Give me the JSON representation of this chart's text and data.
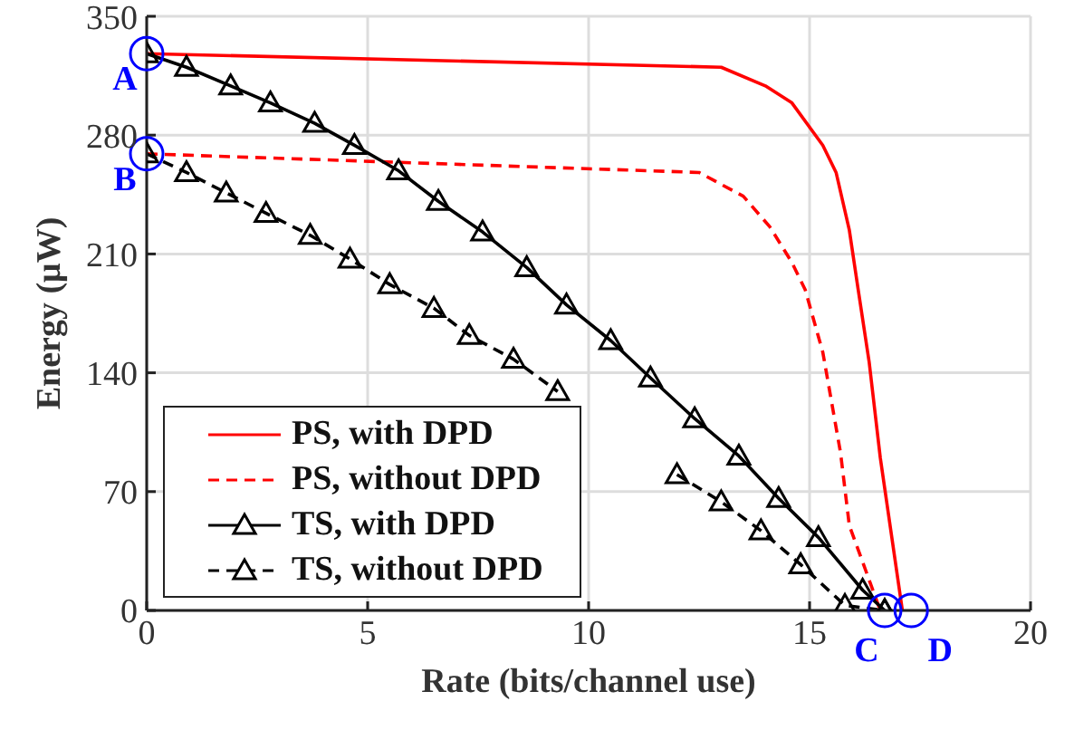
{
  "chart_data": {
    "type": "line",
    "xlabel": "Rate (bits/channel use)",
    "ylabel": "Energy (μW)",
    "xlim": [
      0,
      20
    ],
    "xticks": [
      0,
      5,
      10,
      15,
      20
    ],
    "ylim": [
      0,
      350
    ],
    "yticks": [
      0,
      70,
      140,
      210,
      280,
      350
    ],
    "grid": true,
    "legend": "bottom left",
    "series": [
      {
        "name": "PS, with DPD",
        "color": "#ff0000",
        "line_style": "solid",
        "marker": "none",
        "x": [
          0,
          13.0,
          14.0,
          14.6,
          15.3,
          15.6,
          15.9,
          16.1,
          16.35,
          16.6,
          17.1
        ],
        "values": [
          328,
          320,
          309,
          299,
          274,
          258,
          224,
          189,
          146,
          90,
          0
        ]
      },
      {
        "name": "PS, without DPD",
        "color": "#ff0000",
        "line_style": "dashed",
        "marker": "none",
        "x": [
          0,
          12.5,
          13.5,
          14.1,
          14.6,
          14.9,
          15.3,
          15.7,
          15.9,
          16.6
        ],
        "values": [
          269,
          258,
          244,
          226,
          205,
          189,
          152,
          93,
          50,
          0
        ]
      },
      {
        "name": "TS, with DPD",
        "color": "#000000",
        "line_style": "solid",
        "marker": "triangle",
        "x": [
          0,
          0.9,
          1.9,
          2.8,
          3.8,
          4.7,
          5.7,
          6.6,
          7.6,
          8.6,
          9.5,
          10.5,
          11.4,
          12.4,
          13.4,
          14.3,
          15.2,
          16.2,
          16.7
        ],
        "values": [
          328,
          320,
          309,
          299,
          287,
          274,
          259,
          241,
          223,
          202,
          180,
          159,
          137,
          113,
          91,
          66,
          43,
          12,
          0
        ]
      },
      {
        "name": "TS, without DPD",
        "color": "#000000",
        "line_style": "dashed",
        "marker": "triangle",
        "x": [
          0,
          0.9,
          1.8,
          2.7,
          3.7,
          4.6,
          5.5,
          6.5,
          7.3,
          8.3,
          9.3,
          10.2,
          11.1,
          12.0,
          13.0,
          13.9,
          14.8,
          15.8,
          16.7
        ],
        "values": [
          269,
          258,
          246,
          234,
          221,
          207,
          192,
          178,
          162,
          148,
          129,
          null,
          null,
          80,
          64,
          47,
          27,
          3,
          0
        ]
      }
    ],
    "annotations": [
      {
        "text": "A",
        "x": 0,
        "y": 328
      },
      {
        "text": "B",
        "x": 0,
        "y": 269
      },
      {
        "text": "C",
        "x": 16.7,
        "y": 0
      },
      {
        "text": "D",
        "x": 17.3,
        "y": 0
      }
    ]
  }
}
